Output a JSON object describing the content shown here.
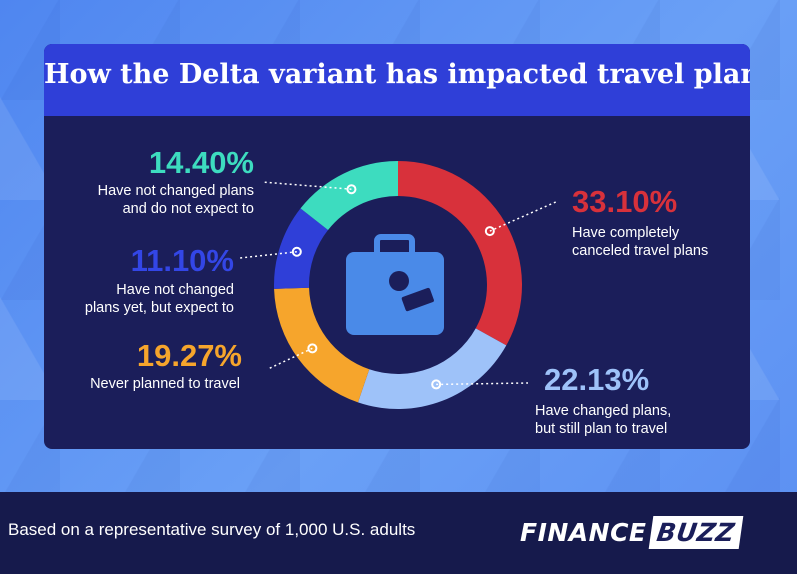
{
  "title": "How the Delta variant has impacted travel plans",
  "footer": {
    "note": "Based on a representative survey of 1,000 U.S. adults"
  },
  "logo": {
    "part1": "FINANCE",
    "part2": "BUZZ"
  },
  "chart_data": {
    "type": "pie",
    "title": "How the Delta variant has impacted travel plans",
    "slices": [
      {
        "label_value": "33.10%",
        "value": 33.1,
        "desc": [
          "Have completely",
          "canceled travel plans"
        ],
        "color": "#d8313b"
      },
      {
        "label_value": "22.13%",
        "value": 22.13,
        "desc": [
          "Have changed plans,",
          "but still plan to travel"
        ],
        "color": "#9ec2f9"
      },
      {
        "label_value": "19.27%",
        "value": 19.27,
        "desc": [
          "Never planned to travel"
        ],
        "color": "#f6a52c"
      },
      {
        "label_value": "11.10%",
        "value": 11.1,
        "desc": [
          "Have not changed",
          "plans yet, but expect to"
        ],
        "color": "#2f3fd8"
      },
      {
        "label_value": "14.40%",
        "value": 14.4,
        "desc": [
          "Have not changed plans",
          "and do not expect to"
        ],
        "color": "#3ddcbf"
      }
    ]
  },
  "icon": {
    "name": "suitcase-icon",
    "color": "#4a8ae8"
  }
}
